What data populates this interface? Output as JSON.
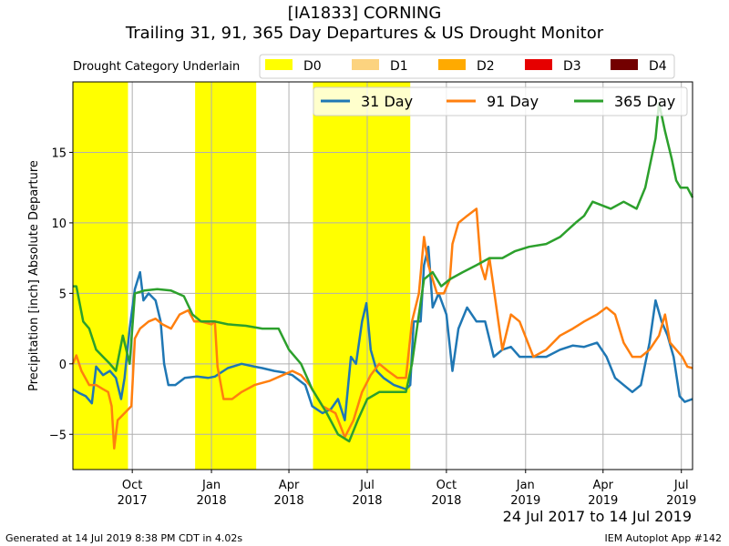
{
  "title_line1": "[IA1833] CORNING",
  "title_line2": "Trailing 31, 91, 365 Day Departures & US Drought Monitor",
  "footer_left": "Generated at 14 Jul 2019 8:38 PM CDT in 4.02s",
  "footer_right": "IEM Autoplot App #142",
  "date_range": "24 Jul 2017 to 14 Jul 2019",
  "drought_legend": {
    "label": "Drought Category Underlain",
    "items": [
      {
        "name": "D0",
        "color": "#ffff00"
      },
      {
        "name": "D1",
        "color": "#fcd37f"
      },
      {
        "name": "D2",
        "color": "#ffaa00"
      },
      {
        "name": "D3",
        "color": "#e60000"
      },
      {
        "name": "D4",
        "color": "#730000"
      }
    ]
  },
  "chart_data": {
    "type": "line",
    "ylabel": "Precipitation [inch] Absolute Departure",
    "xlim": [
      "2017-07-24",
      "2019-07-14"
    ],
    "ylim": [
      -7.5,
      20
    ],
    "yticks": [
      -5,
      0,
      5,
      10,
      15
    ],
    "xticks": [
      {
        "date": "2017-10-01",
        "label": [
          "Oct",
          "2017"
        ]
      },
      {
        "date": "2018-01-01",
        "label": [
          "Jan",
          "2018"
        ]
      },
      {
        "date": "2018-04-01",
        "label": [
          "Apr",
          "2018"
        ]
      },
      {
        "date": "2018-07-01",
        "label": [
          "Jul",
          "2018"
        ]
      },
      {
        "date": "2018-10-01",
        "label": [
          "Oct",
          "2018"
        ]
      },
      {
        "date": "2019-01-01",
        "label": [
          "Jan",
          "2019"
        ]
      },
      {
        "date": "2019-04-01",
        "label": [
          "Apr",
          "2019"
        ]
      },
      {
        "date": "2019-07-01",
        "label": [
          "Jul",
          "2019"
        ]
      }
    ],
    "grid": true,
    "legend_position": "top-right",
    "drought_periods": [
      {
        "category": "D0",
        "start": "2017-07-24",
        "end": "2017-09-26"
      },
      {
        "category": "D0",
        "start": "2017-12-13",
        "end": "2018-02-22"
      },
      {
        "category": "D0",
        "start": "2018-04-29",
        "end": "2018-08-20"
      }
    ],
    "series": [
      {
        "name": "31 Day",
        "color": "#1f77b4",
        "points": [
          [
            "2017-07-24",
            -1.8
          ],
          [
            "2017-08-01",
            -2.1
          ],
          [
            "2017-08-08",
            -2.3
          ],
          [
            "2017-08-15",
            -2.8
          ],
          [
            "2017-08-20",
            -0.2
          ],
          [
            "2017-08-28",
            -0.8
          ],
          [
            "2017-09-05",
            -0.5
          ],
          [
            "2017-09-12",
            -1.0
          ],
          [
            "2017-09-18",
            -2.5
          ],
          [
            "2017-09-22",
            -1.0
          ],
          [
            "2017-09-28",
            2.5
          ],
          [
            "2017-10-04",
            5.3
          ],
          [
            "2017-10-10",
            6.5
          ],
          [
            "2017-10-14",
            4.5
          ],
          [
            "2017-10-20",
            5.0
          ],
          [
            "2017-10-28",
            4.5
          ],
          [
            "2017-11-03",
            3.0
          ],
          [
            "2017-11-07",
            0.0
          ],
          [
            "2017-11-12",
            -1.5
          ],
          [
            "2017-11-20",
            -1.5
          ],
          [
            "2017-12-01",
            -1.0
          ],
          [
            "2017-12-15",
            -0.9
          ],
          [
            "2017-12-28",
            -1.0
          ],
          [
            "2018-01-05",
            -0.9
          ],
          [
            "2018-01-20",
            -0.3
          ],
          [
            "2018-02-05",
            0.0
          ],
          [
            "2018-02-20",
            -0.2
          ],
          [
            "2018-03-01",
            -0.3
          ],
          [
            "2018-03-15",
            -0.5
          ],
          [
            "2018-03-25",
            -0.6
          ],
          [
            "2018-04-05",
            -0.8
          ],
          [
            "2018-04-20",
            -1.5
          ],
          [
            "2018-04-28",
            -3.0
          ],
          [
            "2018-05-10",
            -3.5
          ],
          [
            "2018-05-20",
            -3.2
          ],
          [
            "2018-05-28",
            -2.5
          ],
          [
            "2018-06-05",
            -4.0
          ],
          [
            "2018-06-12",
            0.5
          ],
          [
            "2018-06-18",
            0.0
          ],
          [
            "2018-06-25",
            3.0
          ],
          [
            "2018-06-30",
            4.3
          ],
          [
            "2018-07-05",
            1.0
          ],
          [
            "2018-07-12",
            -0.5
          ],
          [
            "2018-07-20",
            -1.0
          ],
          [
            "2018-08-01",
            -1.5
          ],
          [
            "2018-08-15",
            -1.8
          ],
          [
            "2018-08-20",
            -1.5
          ],
          [
            "2018-08-24",
            3.0
          ],
          [
            "2018-09-01",
            3.0
          ],
          [
            "2018-09-05",
            7.0
          ],
          [
            "2018-09-10",
            8.3
          ],
          [
            "2018-09-15",
            4.0
          ],
          [
            "2018-09-22",
            5.0
          ],
          [
            "2018-10-01",
            3.5
          ],
          [
            "2018-10-08",
            -0.5
          ],
          [
            "2018-10-15",
            2.5
          ],
          [
            "2018-10-25",
            4.0
          ],
          [
            "2018-11-05",
            3.0
          ],
          [
            "2018-11-15",
            3.0
          ],
          [
            "2018-11-25",
            0.5
          ],
          [
            "2018-12-05",
            1.0
          ],
          [
            "2018-12-15",
            1.2
          ],
          [
            "2018-12-25",
            0.5
          ],
          [
            "2019-01-10",
            0.5
          ],
          [
            "2019-01-25",
            0.5
          ],
          [
            "2019-02-10",
            1.0
          ],
          [
            "2019-02-25",
            1.3
          ],
          [
            "2019-03-10",
            1.2
          ],
          [
            "2019-03-25",
            1.5
          ],
          [
            "2019-04-05",
            0.5
          ],
          [
            "2019-04-15",
            -1.0
          ],
          [
            "2019-04-25",
            -1.5
          ],
          [
            "2019-05-05",
            -2.0
          ],
          [
            "2019-05-15",
            -1.5
          ],
          [
            "2019-05-25",
            1.5
          ],
          [
            "2019-06-01",
            4.5
          ],
          [
            "2019-06-08",
            3.0
          ],
          [
            "2019-06-15",
            2.0
          ],
          [
            "2019-06-22",
            0.5
          ],
          [
            "2019-06-29",
            -2.3
          ],
          [
            "2019-07-05",
            -2.7
          ],
          [
            "2019-07-14",
            -2.5
          ]
        ]
      },
      {
        "name": "91 Day",
        "color": "#ff7f0e",
        "points": [
          [
            "2017-07-24",
            0.0
          ],
          [
            "2017-07-28",
            0.6
          ],
          [
            "2017-08-03",
            -0.5
          ],
          [
            "2017-08-12",
            -1.5
          ],
          [
            "2017-08-20",
            -1.5
          ],
          [
            "2017-08-28",
            -1.8
          ],
          [
            "2017-09-03",
            -2.0
          ],
          [
            "2017-09-07",
            -3.0
          ],
          [
            "2017-09-10",
            -6.0
          ],
          [
            "2017-09-14",
            -4.0
          ],
          [
            "2017-09-22",
            -3.5
          ],
          [
            "2017-09-30",
            -3.0
          ],
          [
            "2017-10-04",
            1.8
          ],
          [
            "2017-10-10",
            2.5
          ],
          [
            "2017-10-20",
            3.0
          ],
          [
            "2017-10-28",
            3.2
          ],
          [
            "2017-11-05",
            2.8
          ],
          [
            "2017-11-15",
            2.5
          ],
          [
            "2017-11-25",
            3.5
          ],
          [
            "2017-12-05",
            3.8
          ],
          [
            "2017-12-12",
            3.0
          ],
          [
            "2017-12-20",
            3.0
          ],
          [
            "2018-01-01",
            2.8
          ],
          [
            "2018-01-05",
            3.0
          ],
          [
            "2018-01-08",
            -0.2
          ],
          [
            "2018-01-15",
            -2.5
          ],
          [
            "2018-01-25",
            -2.5
          ],
          [
            "2018-02-05",
            -2.0
          ],
          [
            "2018-02-20",
            -1.5
          ],
          [
            "2018-03-10",
            -1.2
          ],
          [
            "2018-03-25",
            -0.8
          ],
          [
            "2018-04-05",
            -0.5
          ],
          [
            "2018-04-15",
            -0.8
          ],
          [
            "2018-04-25",
            -1.5
          ],
          [
            "2018-05-10",
            -3.0
          ],
          [
            "2018-05-25",
            -3.5
          ],
          [
            "2018-06-05",
            -5.2
          ],
          [
            "2018-06-15",
            -4.0
          ],
          [
            "2018-06-25",
            -2.0
          ],
          [
            "2018-07-05",
            -0.8
          ],
          [
            "2018-07-15",
            0.0
          ],
          [
            "2018-07-25",
            -0.5
          ],
          [
            "2018-08-05",
            -1.0
          ],
          [
            "2018-08-15",
            -1.0
          ],
          [
            "2018-08-22",
            3.0
          ],
          [
            "2018-08-30",
            5.0
          ],
          [
            "2018-09-05",
            9.0
          ],
          [
            "2018-09-10",
            7.0
          ],
          [
            "2018-09-20",
            5.0
          ],
          [
            "2018-09-28",
            5.0
          ],
          [
            "2018-10-05",
            6.0
          ],
          [
            "2018-10-08",
            8.5
          ],
          [
            "2018-10-15",
            10.0
          ],
          [
            "2018-10-25",
            10.5
          ],
          [
            "2018-11-05",
            11.0
          ],
          [
            "2018-11-10",
            7.0
          ],
          [
            "2018-11-15",
            6.0
          ],
          [
            "2018-11-20",
            7.5
          ],
          [
            "2018-12-05",
            1.0
          ],
          [
            "2018-12-15",
            3.5
          ],
          [
            "2018-12-25",
            3.0
          ],
          [
            "2019-01-10",
            0.5
          ],
          [
            "2019-01-25",
            1.0
          ],
          [
            "2019-02-10",
            2.0
          ],
          [
            "2019-02-25",
            2.5
          ],
          [
            "2019-03-10",
            3.0
          ],
          [
            "2019-03-25",
            3.5
          ],
          [
            "2019-04-05",
            4.0
          ],
          [
            "2019-04-15",
            3.5
          ],
          [
            "2019-04-25",
            1.5
          ],
          [
            "2019-05-05",
            0.5
          ],
          [
            "2019-05-15",
            0.5
          ],
          [
            "2019-05-25",
            1.0
          ],
          [
            "2019-06-05",
            2.0
          ],
          [
            "2019-06-12",
            3.5
          ],
          [
            "2019-06-18",
            1.5
          ],
          [
            "2019-06-25",
            1.0
          ],
          [
            "2019-07-02",
            0.5
          ],
          [
            "2019-07-08",
            -0.2
          ],
          [
            "2019-07-14",
            -0.3
          ]
        ]
      },
      {
        "name": "365 Day",
        "color": "#2ca02c",
        "points": [
          [
            "2017-07-24",
            5.5
          ],
          [
            "2017-07-28",
            5.5
          ],
          [
            "2017-08-05",
            3.0
          ],
          [
            "2017-08-12",
            2.5
          ],
          [
            "2017-08-20",
            1.0
          ],
          [
            "2017-08-28",
            0.5
          ],
          [
            "2017-09-05",
            0.0
          ],
          [
            "2017-09-12",
            -0.5
          ],
          [
            "2017-09-20",
            2.0
          ],
          [
            "2017-09-28",
            0.0
          ],
          [
            "2017-10-04",
            5.0
          ],
          [
            "2017-10-15",
            5.2
          ],
          [
            "2017-10-30",
            5.3
          ],
          [
            "2017-11-15",
            5.2
          ],
          [
            "2017-11-30",
            4.8
          ],
          [
            "2017-12-10",
            3.5
          ],
          [
            "2017-12-20",
            3.0
          ],
          [
            "2018-01-05",
            3.0
          ],
          [
            "2018-01-20",
            2.8
          ],
          [
            "2018-02-10",
            2.7
          ],
          [
            "2018-03-01",
            2.5
          ],
          [
            "2018-03-20",
            2.5
          ],
          [
            "2018-04-01",
            1.0
          ],
          [
            "2018-04-15",
            0.0
          ],
          [
            "2018-04-28",
            -1.8
          ],
          [
            "2018-05-15",
            -3.5
          ],
          [
            "2018-05-28",
            -5.0
          ],
          [
            "2018-06-10",
            -5.5
          ],
          [
            "2018-06-20",
            -4.0
          ],
          [
            "2018-07-01",
            -2.5
          ],
          [
            "2018-07-15",
            -2.0
          ],
          [
            "2018-08-01",
            -2.0
          ],
          [
            "2018-08-15",
            -2.0
          ],
          [
            "2018-08-22",
            0.0
          ],
          [
            "2018-08-30",
            3.5
          ],
          [
            "2018-09-05",
            6.0
          ],
          [
            "2018-09-15",
            6.5
          ],
          [
            "2018-09-25",
            5.5
          ],
          [
            "2018-10-05",
            6.0
          ],
          [
            "2018-10-20",
            6.5
          ],
          [
            "2018-11-05",
            7.0
          ],
          [
            "2018-11-20",
            7.5
          ],
          [
            "2018-12-05",
            7.5
          ],
          [
            "2018-12-20",
            8.0
          ],
          [
            "2019-01-05",
            8.3
          ],
          [
            "2019-01-25",
            8.5
          ],
          [
            "2019-02-10",
            9.0
          ],
          [
            "2019-02-28",
            10.0
          ],
          [
            "2019-03-10",
            10.5
          ],
          [
            "2019-03-20",
            11.5
          ],
          [
            "2019-04-10",
            11.0
          ],
          [
            "2019-04-25",
            11.5
          ],
          [
            "2019-05-10",
            11.0
          ],
          [
            "2019-05-20",
            12.5
          ],
          [
            "2019-06-01",
            16.0
          ],
          [
            "2019-06-05",
            18.5
          ],
          [
            "2019-06-12",
            16.5
          ],
          [
            "2019-06-20",
            14.5
          ],
          [
            "2019-06-25",
            13.0
          ],
          [
            "2019-06-30",
            12.5
          ],
          [
            "2019-07-08",
            12.5
          ],
          [
            "2019-07-14",
            11.8
          ]
        ]
      }
    ]
  }
}
